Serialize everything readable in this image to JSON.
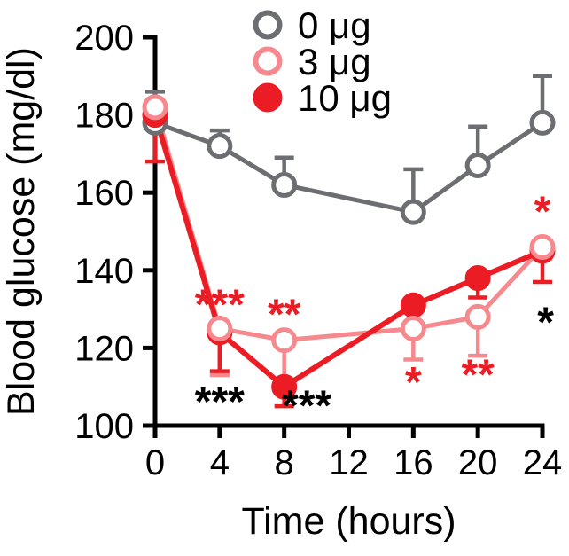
{
  "chart_data": {
    "type": "line",
    "title": "",
    "xlabel": "Time (hours)",
    "ylabel": "Blood glucose (mg/dl)",
    "xlim": [
      0,
      24
    ],
    "ylim": [
      100,
      200
    ],
    "xticks": [
      0,
      4,
      8,
      12,
      16,
      20,
      24
    ],
    "yticks": [
      100,
      120,
      140,
      160,
      180,
      200
    ],
    "grid": false,
    "legend_position": "top-center-inside",
    "x": [
      0,
      4,
      8,
      16,
      20,
      24
    ],
    "series": [
      {
        "name": "0 μg",
        "color": "#6d6e71",
        "marker": "open",
        "line_width": 5,
        "values": [
          178,
          172,
          162,
          155,
          167,
          178
        ],
        "sem": [
          8,
          4,
          7,
          11,
          10,
          12
        ],
        "error_dir": "up"
      },
      {
        "name": "3 μg",
        "color": "#f5898e",
        "marker": "open",
        "line_width": 5,
        "values": [
          182,
          125,
          122,
          125,
          128,
          146
        ],
        "sem": [
          4,
          12,
          10,
          8,
          10,
          3
        ],
        "error_dir": "down"
      },
      {
        "name": "10 μg",
        "color": "#ec1c24",
        "marker": "filled",
        "line_width": 6,
        "values": [
          180,
          124,
          110,
          131,
          138,
          145
        ],
        "sem": [
          12,
          10,
          5,
          5,
          5,
          8
        ],
        "error_dir": "down"
      }
    ],
    "annotations": [
      {
        "x": 4,
        "y": 127.5,
        "text": "***",
        "color": "#ec1c24"
      },
      {
        "x": 4,
        "y": 102.5,
        "text": "***",
        "color": "#000000"
      },
      {
        "x": 8,
        "y": 125,
        "text": "**",
        "color": "#ec1c24"
      },
      {
        "x": 9.4,
        "y": 101.5,
        "text": "***",
        "color": "#000000"
      },
      {
        "x": 16,
        "y": 107.5,
        "text": "*",
        "color": "#ec1c24"
      },
      {
        "x": 20,
        "y": 109.5,
        "text": "**",
        "color": "#ec1c24"
      },
      {
        "x": 24,
        "y": 151.5,
        "text": "*",
        "color": "#ec1c24"
      },
      {
        "x": 24.2,
        "y": 123,
        "text": "*",
        "color": "#000000"
      }
    ],
    "axis_color": "#000000",
    "text_color": "#000000"
  }
}
